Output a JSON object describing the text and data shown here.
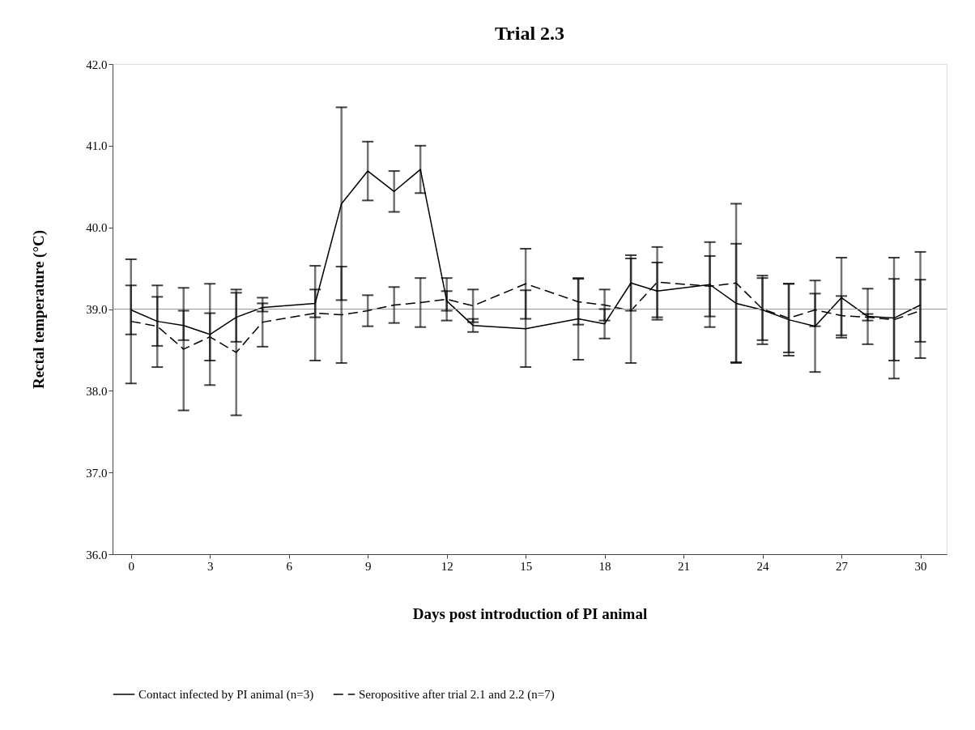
{
  "chart_data": {
    "type": "line",
    "title": "Trial 2.3",
    "xlabel": "Days post introduction of PI animal",
    "ylabel": "Rectal temperature (°C)",
    "x": [
      0,
      1,
      2,
      3,
      4,
      5,
      7,
      8,
      9,
      10,
      11,
      12,
      13,
      15,
      17,
      18,
      19,
      20,
      22,
      23,
      24,
      25,
      26,
      27,
      28,
      29,
      30
    ],
    "xlim": [
      -0.7,
      31
    ],
    "xticks": [
      0,
      3,
      6,
      9,
      12,
      15,
      18,
      21,
      24,
      27,
      30
    ],
    "ylim": [
      36,
      42
    ],
    "yticks": [
      {
        "value": 36,
        "label": "36.0"
      },
      {
        "value": 37,
        "label": "37.0"
      },
      {
        "value": 38,
        "label": "38.0"
      },
      {
        "value": 39,
        "label": "39.0"
      },
      {
        "value": 40,
        "label": "40.0"
      },
      {
        "value": 41,
        "label": "41.0"
      },
      {
        "value": 42,
        "label": "42.0"
      }
    ],
    "series": [
      {
        "name": "Contact infected by PI animal (n=3)",
        "color": "#000000",
        "line_style": "solid",
        "values": [
          38.99,
          38.85,
          38.8,
          38.69,
          38.9,
          39.02,
          39.07,
          40.29,
          40.69,
          40.44,
          40.71,
          39.1,
          38.8,
          38.76,
          38.88,
          38.82,
          39.32,
          39.22,
          39.3,
          39.07,
          38.99,
          38.87,
          38.79,
          39.14,
          38.91,
          38.89,
          39.05
        ],
        "errors": [
          0.3,
          0.3,
          0.18,
          0.62,
          0.3,
          0.05,
          0.17,
          1.18,
          0.36,
          0.25,
          0.29,
          0.12,
          0.08,
          0.47,
          0.5,
          0.18,
          0.34,
          0.35,
          0.52,
          0.73,
          0.42,
          0.44,
          0.56,
          0.49,
          0.34,
          0.74,
          0.65
        ]
      },
      {
        "name": "Seropositive after trial 2.1 and 2.2 (n=7)",
        "color": "#000000",
        "line_style": "dashed",
        "values": [
          38.85,
          38.79,
          38.51,
          38.66,
          38.47,
          38.84,
          38.95,
          38.93,
          38.98,
          39.05,
          39.08,
          39.12,
          39.04,
          39.31,
          39.09,
          39.05,
          38.98,
          39.33,
          39.28,
          39.32,
          39.0,
          38.89,
          38.99,
          38.92,
          38.9,
          38.87,
          38.98
        ],
        "errors": [
          0.76,
          0.5,
          0.75,
          0.29,
          0.77,
          0.3,
          0.58,
          0.59,
          0.19,
          0.22,
          0.3,
          0.26,
          0.2,
          0.43,
          0.28,
          0.19,
          0.64,
          0.43,
          0.37,
          0.97,
          0.38,
          0.42,
          0.2,
          0.24,
          0.04,
          0.5,
          0.38
        ]
      }
    ],
    "ref_lines": [
      {
        "axis": "y",
        "value": 39,
        "color": "#999999"
      }
    ],
    "legend": "bottom",
    "grid": false,
    "marker": "none"
  }
}
